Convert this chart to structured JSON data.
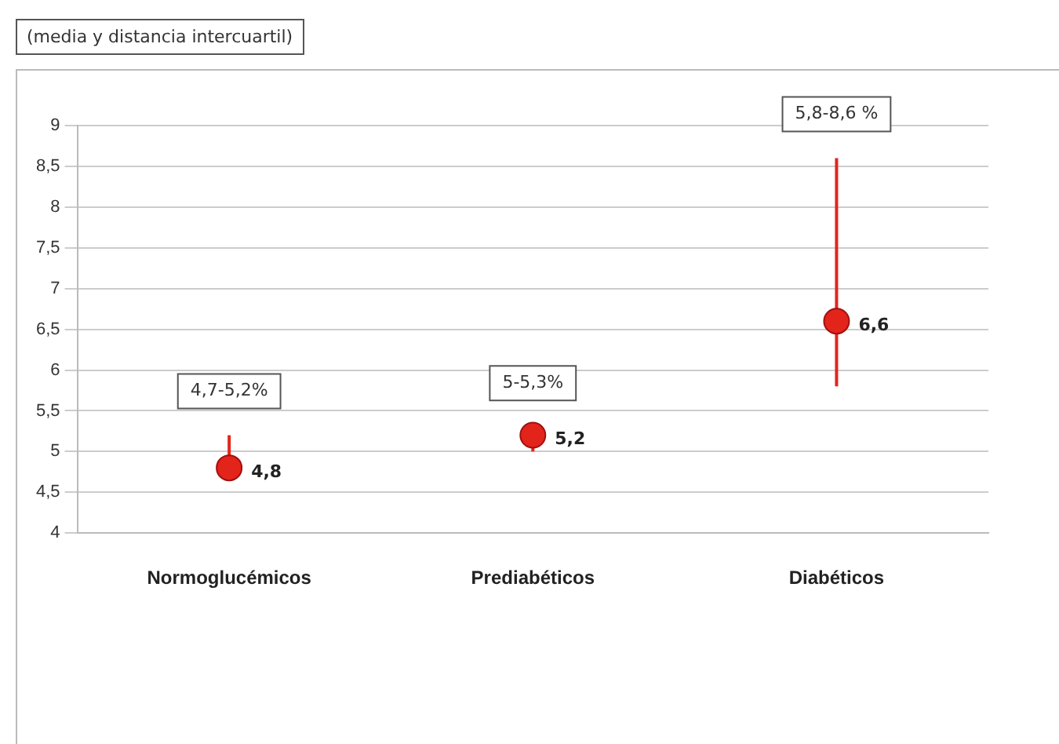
{
  "chart_data": {
    "type": "scatter",
    "title": "(media y distancia intercuartil)",
    "categories": [
      "Normoglucémicos",
      "Prediabéticos",
      "Diabéticos"
    ],
    "values": [
      4.8,
      5.2,
      6.6
    ],
    "color": "#e3241b",
    "marker": "circle",
    "errors": [
      [
        4.7,
        5.2
      ],
      [
        5,
        5.3
      ],
      [
        5.8,
        8.6
      ]
    ],
    "value_labels": [
      "4,8",
      "5,2",
      "6,6"
    ],
    "ylim": [
      4,
      9
    ],
    "yticks": [
      4,
      {
        "value": 4.5,
        "label": "4,5"
      },
      5,
      {
        "value": 5.5,
        "label": "5,5"
      },
      6,
      {
        "value": 6.5,
        "label": "6,5"
      },
      7,
      {
        "value": 7.5,
        "label": "7,5"
      },
      8,
      {
        "value": 8.5,
        "label": "8,5"
      },
      9
    ],
    "grid": "y",
    "legend": false,
    "annotations": [
      "4,7-5,2%",
      "5-5,3%",
      "5,8-8,6 %"
    ]
  }
}
